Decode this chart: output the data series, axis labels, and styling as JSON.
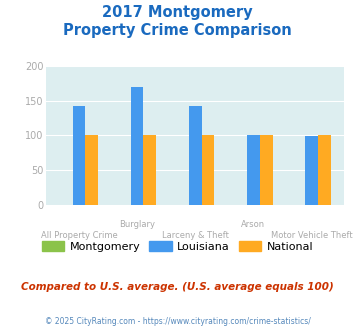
{
  "title_line1": "2017 Montgomery",
  "title_line2": "Property Crime Comparison",
  "groups": [
    "All Property Crime",
    "Burglary",
    "Larceny & Theft",
    "Arson",
    "Motor Vehicle Theft"
  ],
  "montgomery": [
    0,
    0,
    0,
    0,
    0
  ],
  "louisiana": [
    143,
    170,
    143,
    101,
    99
  ],
  "national": [
    100,
    100,
    100,
    100,
    100
  ],
  "montgomery_color": "#8bc34a",
  "louisiana_color": "#4499ee",
  "national_color": "#ffaa22",
  "bg_color": "#ddeef0",
  "ylim": [
    0,
    200
  ],
  "yticks": [
    0,
    50,
    100,
    150,
    200
  ],
  "legend_labels": [
    "Montgomery",
    "Louisiana",
    "National"
  ],
  "footnote1": "Compared to U.S. average. (U.S. average equals 100)",
  "footnote2": "© 2025 CityRating.com - https://www.cityrating.com/crime-statistics/",
  "title_color": "#1a6abf",
  "footnote1_color": "#cc3300",
  "footnote2_color": "#5588bb",
  "axis_label_color": "#aaaaaa",
  "top_labels": {
    "1": "Burglary",
    "3": "Arson"
  },
  "bottom_labels": {
    "0": "All Property Crime",
    "2": "Larceny & Theft",
    "4": "Motor Vehicle Theft"
  }
}
